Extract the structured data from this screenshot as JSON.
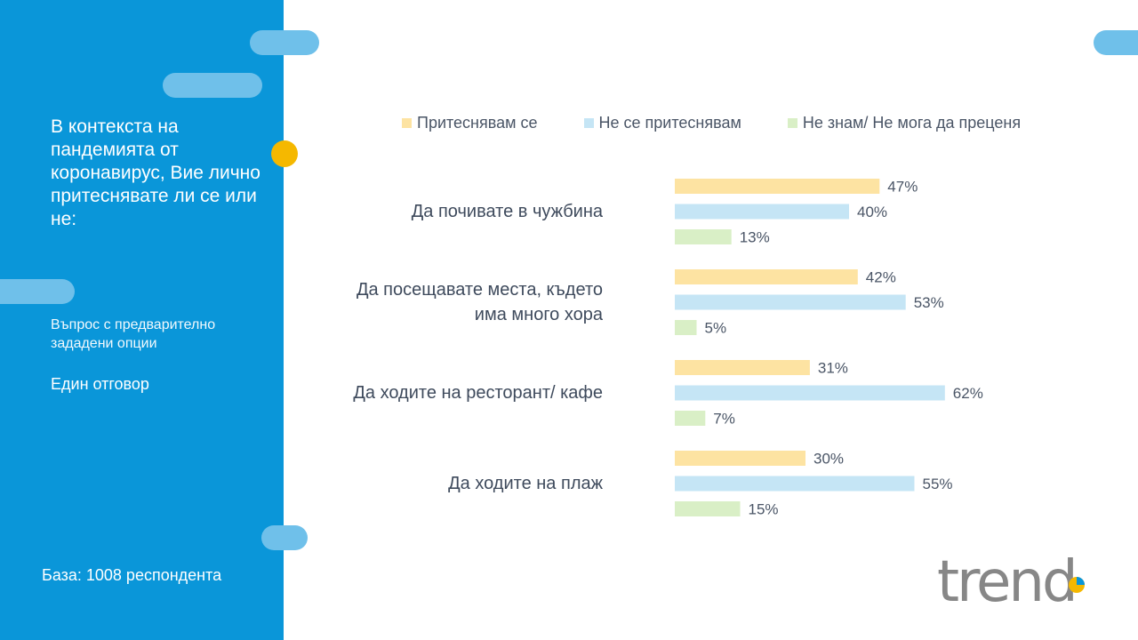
{
  "sidebar": {
    "question": "В контекста на пандемията от коронавирус, Вие лично притеснявате ли се или не:",
    "note": "Въпрос с предварително зададени опции",
    "answer_type": "Един отговор",
    "base": "База: 1008 респондента"
  },
  "logo": {
    "text": "trend"
  },
  "colors": {
    "sidebar": "#0a96d9",
    "accent_pill": "#6fc0ea",
    "accent_dot": "#f5b800",
    "worry": "#fde3a2",
    "no_worry": "#c5e5f5",
    "dont_know": "#d9efc6",
    "label_text": "#3e4a5c"
  },
  "chart_data": {
    "type": "bar",
    "orientation": "horizontal",
    "unit": "%",
    "legend_position": "top",
    "categories": [
      "Да почивате в чужбина",
      "Да посещавате места, където има много хора",
      "Да ходите на ресторант/ кафе",
      "Да ходите на плаж"
    ],
    "series": [
      {
        "name": "Притеснявам се",
        "values": [
          47,
          42,
          31,
          30
        ]
      },
      {
        "name": "Не се притеснявам",
        "values": [
          40,
          53,
          62,
          55
        ]
      },
      {
        "name": "Не знам/ Не мога да преценя",
        "values": [
          13,
          5,
          7,
          15
        ]
      }
    ]
  }
}
